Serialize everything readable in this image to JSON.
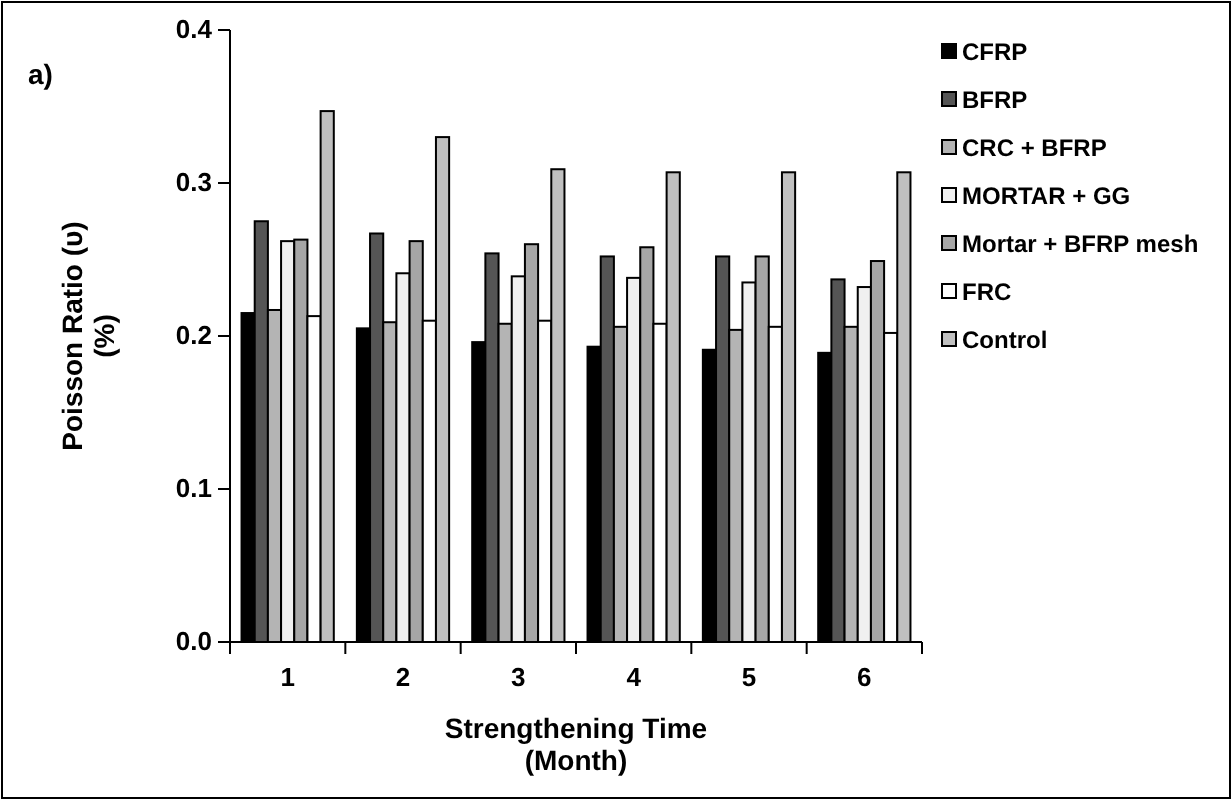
{
  "chart_data": {
    "type": "bar",
    "xlabel": "Strengthening Time\n(Month)",
    "ylabel": "Poisson Ratio (υ)\n(%)",
    "annotations": [
      "a)"
    ],
    "categories": [
      "1",
      "2",
      "3",
      "4",
      "5",
      "6"
    ],
    "series": [
      {
        "name": "CFRP",
        "color": "#000000",
        "values": [
          0.215,
          0.205,
          0.196,
          0.193,
          0.191,
          0.189
        ]
      },
      {
        "name": "BFRP",
        "color": "#555555",
        "values": [
          0.275,
          0.267,
          0.254,
          0.252,
          0.252,
          0.237
        ]
      },
      {
        "name": "CRC + BFRP",
        "color": "#b4b4b4",
        "values": [
          0.217,
          0.209,
          0.208,
          0.206,
          0.204,
          0.206
        ]
      },
      {
        "name": "MORTAR + GG",
        "color": "#f0f0f0",
        "values": [
          0.262,
          0.241,
          0.239,
          0.238,
          0.235,
          0.232
        ]
      },
      {
        "name": "Mortar + BFRP mesh",
        "color": "#a6a6a6",
        "values": [
          0.263,
          0.262,
          0.26,
          0.258,
          0.252,
          0.249
        ]
      },
      {
        "name": "FRC",
        "color": "#ffffff",
        "values": [
          0.213,
          0.21,
          0.21,
          0.208,
          0.206,
          0.202
        ]
      },
      {
        "name": "Control",
        "color": "#c0c0c0",
        "values": [
          0.347,
          0.33,
          0.309,
          0.307,
          0.307,
          0.307
        ]
      }
    ],
    "ylim": [
      0,
      0.4
    ],
    "yticks": [
      {
        "value": 0,
        "label": "0.0"
      },
      0.1,
      0.2,
      0.3,
      0.4
    ],
    "legend": "top right",
    "grid": false
  }
}
